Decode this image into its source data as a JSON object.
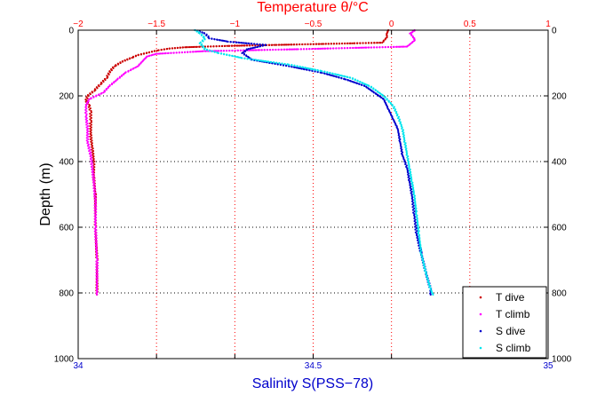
{
  "chart_data": {
    "type": "scatter",
    "top_axis": {
      "label": "Temperature θ/°C",
      "range": [
        -2,
        1
      ],
      "ticks": [
        -2,
        -1.5,
        -1,
        -0.5,
        0,
        0.5,
        1
      ],
      "tick_labels": [
        "−2",
        "−1.5",
        "−1",
        "−0.5",
        "0",
        "0.5",
        "1"
      ],
      "color": "#ff0000"
    },
    "bottom_axis": {
      "label": "Salinity S(PSS−78)",
      "range": [
        34,
        35
      ],
      "ticks": [
        34,
        34.5,
        35
      ],
      "tick_labels": [
        "34",
        "34.5",
        "35"
      ],
      "color": "#0000cc"
    },
    "y_axis": {
      "label": "Depth (m)",
      "range": [
        0,
        1000
      ],
      "reversed": true,
      "ticks": [
        0,
        200,
        400,
        600,
        800,
        1000
      ],
      "tick_labels": [
        "0",
        "200",
        "400",
        "600",
        "800",
        "1000"
      ]
    },
    "grid": true,
    "grid_color": "#ff0000",
    "legend_position": "bottom-right",
    "series": [
      {
        "name": "T dive",
        "axis": "temperature",
        "color": "#cc0000",
        "points": [
          [
            -0.02,
            0
          ],
          [
            -0.03,
            10
          ],
          [
            -0.03,
            22
          ],
          [
            -0.06,
            38
          ],
          [
            -0.25,
            40
          ],
          [
            -0.45,
            42
          ],
          [
            -0.75,
            45
          ],
          [
            -1.05,
            48
          ],
          [
            -1.32,
            52
          ],
          [
            -1.42,
            56
          ],
          [
            -1.5,
            62
          ],
          [
            -1.55,
            68
          ],
          [
            -1.62,
            76
          ],
          [
            -1.66,
            84
          ],
          [
            -1.72,
            96
          ],
          [
            -1.77,
            110
          ],
          [
            -1.8,
            128
          ],
          [
            -1.82,
            146
          ],
          [
            -1.86,
            165
          ],
          [
            -1.9,
            185
          ],
          [
            -1.94,
            200
          ],
          [
            -1.95,
            215
          ],
          [
            -1.93,
            230
          ],
          [
            -1.92,
            250
          ],
          [
            -1.92,
            280
          ],
          [
            -1.92,
            320
          ],
          [
            -1.91,
            360
          ],
          [
            -1.9,
            400
          ],
          [
            -1.9,
            450
          ],
          [
            -1.89,
            500
          ],
          [
            -1.89,
            600
          ],
          [
            -1.88,
            700
          ],
          [
            -1.88,
            805
          ]
        ]
      },
      {
        "name": "T climb",
        "axis": "temperature",
        "color": "#ff00ff",
        "points": [
          [
            0.15,
            0
          ],
          [
            0.12,
            10
          ],
          [
            0.14,
            22
          ],
          [
            0.15,
            30
          ],
          [
            0.1,
            50
          ],
          [
            -0.6,
            58
          ],
          [
            -1.2,
            64
          ],
          [
            -1.5,
            72
          ],
          [
            -1.56,
            80
          ],
          [
            -1.58,
            90
          ],
          [
            -1.62,
            110
          ],
          [
            -1.7,
            130
          ],
          [
            -1.75,
            150
          ],
          [
            -1.8,
            170
          ],
          [
            -1.84,
            190
          ],
          [
            -1.93,
            210
          ],
          [
            -1.95,
            230
          ],
          [
            -1.95,
            260
          ],
          [
            -1.94,
            300
          ],
          [
            -1.94,
            340
          ],
          [
            -1.92,
            380
          ],
          [
            -1.91,
            420
          ],
          [
            -1.9,
            460
          ],
          [
            -1.89,
            520
          ],
          [
            -1.89,
            600
          ],
          [
            -1.88,
            700
          ],
          [
            -1.88,
            805
          ]
        ]
      },
      {
        "name": "S dive",
        "axis": "salinity",
        "color": "#0000cc",
        "points": [
          [
            34.25,
            0
          ],
          [
            34.27,
            10
          ],
          [
            34.28,
            25
          ],
          [
            34.32,
            35
          ],
          [
            34.4,
            45
          ],
          [
            34.36,
            58
          ],
          [
            34.35,
            70
          ],
          [
            34.37,
            90
          ],
          [
            34.45,
            110
          ],
          [
            34.52,
            130
          ],
          [
            34.57,
            150
          ],
          [
            34.61,
            170
          ],
          [
            34.63,
            190
          ],
          [
            34.65,
            210
          ],
          [
            34.66,
            240
          ],
          [
            34.67,
            270
          ],
          [
            34.68,
            300
          ],
          [
            34.685,
            340
          ],
          [
            34.69,
            380
          ],
          [
            34.7,
            420
          ],
          [
            34.705,
            460
          ],
          [
            34.71,
            500
          ],
          [
            34.715,
            560
          ],
          [
            34.72,
            620
          ],
          [
            34.73,
            680
          ],
          [
            34.74,
            740
          ],
          [
            34.75,
            790
          ],
          [
            34.75,
            805
          ]
        ]
      },
      {
        "name": "S climb",
        "axis": "salinity",
        "color": "#00e5ee",
        "points": [
          [
            34.25,
            0
          ],
          [
            34.26,
            10
          ],
          [
            34.27,
            25
          ],
          [
            34.26,
            40
          ],
          [
            34.27,
            58
          ],
          [
            34.3,
            70
          ],
          [
            34.35,
            85
          ],
          [
            34.45,
            105
          ],
          [
            34.52,
            125
          ],
          [
            34.58,
            145
          ],
          [
            34.62,
            170
          ],
          [
            34.65,
            200
          ],
          [
            34.67,
            230
          ],
          [
            34.68,
            260
          ],
          [
            34.69,
            300
          ],
          [
            34.695,
            340
          ],
          [
            34.7,
            380
          ],
          [
            34.705,
            420
          ],
          [
            34.71,
            460
          ],
          [
            34.715,
            500
          ],
          [
            34.72,
            560
          ],
          [
            34.725,
            620
          ],
          [
            34.73,
            680
          ],
          [
            34.74,
            740
          ],
          [
            34.75,
            790
          ],
          [
            34.755,
            805
          ]
        ]
      }
    ]
  }
}
